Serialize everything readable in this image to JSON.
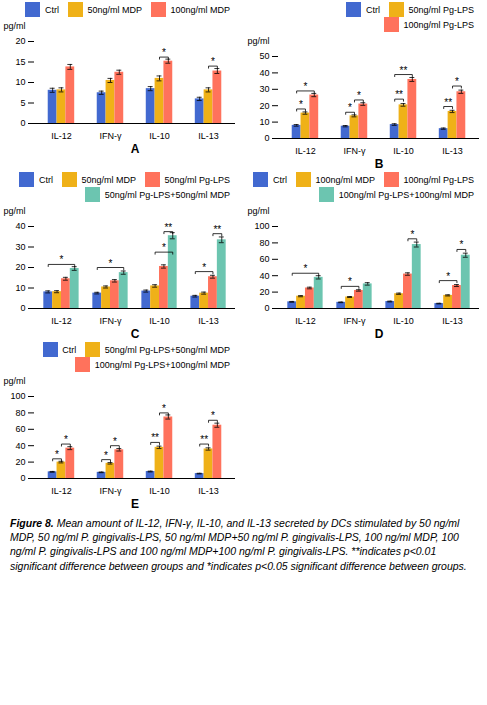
{
  "chart_data": [
    {
      "type": "bar",
      "title": "A",
      "ylabel": "pg/ml",
      "categories": [
        "IL-12",
        "IFN-γ",
        "IL-10",
        "IL-13"
      ],
      "series": [
        {
          "name": "Ctrl",
          "values": [
            8.1,
            7.5,
            8.5,
            6.0
          ],
          "errors": [
            0.5,
            0.4,
            0.5,
            0.4
          ]
        },
        {
          "name": "50ng/ml MDP",
          "values": [
            8.2,
            10.5,
            11.0,
            8.2
          ],
          "errors": [
            0.5,
            0.5,
            0.6,
            0.5
          ]
        },
        {
          "name": "100ng/ml MDP",
          "values": [
            13.8,
            12.5,
            15.2,
            12.8
          ],
          "errors": [
            0.6,
            0.5,
            0.5,
            0.6
          ]
        }
      ],
      "ylim": [
        0,
        20
      ],
      "yticks": [
        0,
        5,
        10,
        15,
        20
      ],
      "legend": "upper right",
      "grid": false,
      "annotations": [
        {
          "category": "IL-10",
          "from": "50ng/ml MDP",
          "to": "100ng/ml MDP",
          "y": 16.2,
          "text": "*"
        },
        {
          "category": "IL-13",
          "from": "50ng/ml MDP",
          "to": "100ng/ml MDP",
          "y": 14.0,
          "text": "*"
        }
      ]
    },
    {
      "type": "bar",
      "title": "B",
      "ylabel": "pg/ml",
      "categories": [
        "IL-12",
        "IFN-γ",
        "IL-10",
        "IL-13"
      ],
      "series": [
        {
          "name": "Ctrl",
          "values": [
            8.0,
            7.5,
            8.5,
            6.0
          ],
          "errors": [
            0.5,
            0.4,
            0.5,
            0.4
          ]
        },
        {
          "name": "50ng/ml Pg-LPS",
          "values": [
            15.5,
            13.8,
            20.5,
            16.5
          ],
          "errors": [
            0.7,
            0.6,
            0.8,
            0.7
          ]
        },
        {
          "name": "100ng/ml Pg-LPS",
          "values": [
            26.5,
            21.0,
            36.0,
            28.5
          ],
          "errors": [
            1.0,
            0.8,
            1.2,
            1.0
          ]
        }
      ],
      "ylim": [
        0,
        50
      ],
      "yticks": [
        0,
        10,
        20,
        30,
        40,
        50
      ],
      "legend": "upper right",
      "grid": false,
      "annotations": [
        {
          "category": "IL-12",
          "from": "Ctrl",
          "to": "50ng/ml Pg-LPS",
          "y": 18.0,
          "text": "*"
        },
        {
          "category": "IL-12",
          "from": "Ctrl",
          "to": "100ng/ml Pg-LPS",
          "y": 29.0,
          "text": "*"
        },
        {
          "category": "IFN-γ",
          "from": "Ctrl",
          "to": "50ng/ml Pg-LPS",
          "y": 16.0,
          "text": "*"
        },
        {
          "category": "IFN-γ",
          "from": "50ng/ml Pg-LPS",
          "to": "100ng/ml Pg-LPS",
          "y": 23.5,
          "text": "*"
        },
        {
          "category": "IL-10",
          "from": "Ctrl",
          "to": "50ng/ml Pg-LPS",
          "y": 24.0,
          "text": "**"
        },
        {
          "category": "IL-10",
          "from": "Ctrl",
          "to": "100ng/ml Pg-LPS",
          "y": 39.0,
          "text": "**"
        },
        {
          "category": "IL-13",
          "from": "Ctrl",
          "to": "50ng/ml Pg-LPS",
          "y": 19.5,
          "text": "**"
        },
        {
          "category": "IL-13",
          "from": "50ng/ml Pg-LPS",
          "to": "100ng/ml Pg-LPS",
          "y": 32.0,
          "text": "*"
        }
      ]
    },
    {
      "type": "bar",
      "title": "C",
      "ylabel": "pg/ml",
      "categories": [
        "IL-12",
        "IFN-γ",
        "IL-10",
        "IL-13"
      ],
      "series": [
        {
          "name": "Ctrl",
          "values": [
            8.1,
            7.5,
            8.5,
            6.0
          ],
          "errors": [
            0.5,
            0.4,
            0.5,
            0.4
          ]
        },
        {
          "name": "50ng/ml MDP",
          "values": [
            8.2,
            10.5,
            11.0,
            7.5
          ],
          "errors": [
            0.5,
            0.5,
            0.6,
            0.5
          ]
        },
        {
          "name": "50ng/ml Pg-LPS",
          "values": [
            14.5,
            13.5,
            20.5,
            15.5
          ],
          "errors": [
            0.7,
            0.6,
            0.8,
            0.7
          ]
        },
        {
          "name": "50ng/ml Pg-LPS+50ng/ml MDP",
          "values": [
            19.5,
            17.5,
            35.5,
            33.5
          ],
          "errors": [
            0.9,
            0.8,
            1.5,
            1.4
          ]
        }
      ],
      "ylim": [
        0,
        40
      ],
      "yticks": [
        0,
        10,
        20,
        30,
        40
      ],
      "legend": "upper right",
      "grid": false,
      "annotations": [
        {
          "category": "IL-12",
          "from": "Ctrl",
          "to": "50ng/ml Pg-LPS+50ng/ml MDP",
          "y": 21.5,
          "text": "*"
        },
        {
          "category": "IFN-γ",
          "from": "Ctrl",
          "to": "50ng/ml Pg-LPS+50ng/ml MDP",
          "y": 20.0,
          "text": "*"
        },
        {
          "category": "IL-10",
          "from": "50ng/ml MDP",
          "to": "50ng/ml Pg-LPS+50ng/ml MDP",
          "y": 27.5,
          "text": "*"
        },
        {
          "category": "IL-10",
          "from": "50ng/ml Pg-LPS",
          "to": "50ng/ml Pg-LPS+50ng/ml MDP",
          "y": 37.5,
          "text": "**"
        },
        {
          "category": "IL-13",
          "from": "Ctrl",
          "to": "50ng/ml Pg-LPS",
          "y": 18.0,
          "text": "*"
        },
        {
          "category": "IL-13",
          "from": "50ng/ml Pg-LPS",
          "to": "50ng/ml Pg-LPS+50ng/ml MDP",
          "y": 36.5,
          "text": "**"
        }
      ]
    },
    {
      "type": "bar",
      "title": "D",
      "ylabel": "pg/ml",
      "categories": [
        "IL-12",
        "IFN-γ",
        "IL-10",
        "IL-13"
      ],
      "series": [
        {
          "name": "Ctrl",
          "values": [
            8.1,
            7.5,
            8.5,
            6.0
          ],
          "errors": [
            0.5,
            0.4,
            0.5,
            0.4
          ]
        },
        {
          "name": "100ng/ml MDP",
          "values": [
            15.0,
            14.0,
            18.0,
            16.0
          ],
          "errors": [
            0.7,
            0.6,
            0.8,
            0.7
          ]
        },
        {
          "name": "100ng/ml Pg-LPS",
          "values": [
            25.0,
            22.0,
            42.0,
            28.0
          ],
          "errors": [
            1.0,
            0.9,
            1.5,
            1.2
          ]
        },
        {
          "name": "100ng/ml Pg-LPS+100ng/ml MDP",
          "values": [
            38.0,
            30.0,
            78.0,
            65.0
          ],
          "errors": [
            2.0,
            1.5,
            3.0,
            2.5
          ]
        }
      ],
      "ylim": [
        0,
        100
      ],
      "yticks": [
        0,
        20,
        40,
        60,
        80,
        100
      ],
      "legend": "upper right",
      "grid": false,
      "annotations": [
        {
          "category": "IL-12",
          "from": "Ctrl",
          "to": "100ng/ml Pg-LPS+100ng/ml MDP",
          "y": 43.0,
          "text": "*"
        },
        {
          "category": "IFN-γ",
          "from": "Ctrl",
          "to": "100ng/ml Pg-LPS",
          "y": 27.0,
          "text": "*"
        },
        {
          "category": "IL-10",
          "from": "100ng/ml Pg-LPS",
          "to": "100ng/ml Pg-LPS+100ng/ml MDP",
          "y": 85.0,
          "text": "*"
        },
        {
          "category": "IL-13",
          "from": "Ctrl",
          "to": "100ng/ml Pg-LPS",
          "y": 34.0,
          "text": "*"
        },
        {
          "category": "IL-13",
          "from": "100ng/ml Pg-LPS",
          "to": "100ng/ml Pg-LPS+100ng/ml MDP",
          "y": 72.0,
          "text": "*"
        }
      ]
    },
    {
      "type": "bar",
      "title": "E",
      "ylabel": "pg/ml",
      "categories": [
        "IL-12",
        "IFN-γ",
        "IL-10",
        "IL-13"
      ],
      "series": [
        {
          "name": "Ctrl",
          "values": [
            8.1,
            7.5,
            8.5,
            6.0
          ],
          "errors": [
            0.5,
            0.4,
            0.5,
            0.4
          ]
        },
        {
          "name": "50ng/ml Pg-LPS+50ng/ml MDP",
          "values": [
            20.0,
            18.5,
            38.0,
            36.0
          ],
          "errors": [
            1.0,
            0.9,
            1.5,
            1.4
          ]
        },
        {
          "name": "100ng/ml Pg-LPS+100ng/ml MDP",
          "values": [
            37.0,
            35.0,
            75.0,
            65.0
          ],
          "errors": [
            1.8,
            1.5,
            2.5,
            2.5
          ]
        }
      ],
      "ylim": [
        0,
        100
      ],
      "yticks": [
        0,
        20,
        40,
        60,
        80,
        100
      ],
      "legend": "upper right",
      "grid": false,
      "annotations": [
        {
          "category": "IL-12",
          "from": "Ctrl",
          "to": "50ng/ml Pg-LPS+50ng/ml MDP",
          "y": 24.0,
          "text": "*"
        },
        {
          "category": "IL-12",
          "from": "50ng/ml Pg-LPS+50ng/ml MDP",
          "to": "100ng/ml Pg-LPS+100ng/ml MDP",
          "y": 42.0,
          "text": "*"
        },
        {
          "category": "IFN-γ",
          "from": "Ctrl",
          "to": "50ng/ml Pg-LPS+50ng/ml MDP",
          "y": 23.0,
          "text": "*"
        },
        {
          "category": "IFN-γ",
          "from": "50ng/ml Pg-LPS+50ng/ml MDP",
          "to": "100ng/ml Pg-LPS+100ng/ml MDP",
          "y": 40.0,
          "text": "*"
        },
        {
          "category": "IL-10",
          "from": "Ctrl",
          "to": "50ng/ml Pg-LPS+50ng/ml MDP",
          "y": 44.0,
          "text": "**"
        },
        {
          "category": "IL-10",
          "from": "50ng/ml Pg-LPS+50ng/ml MDP",
          "to": "100ng/ml Pg-LPS+100ng/ml MDP",
          "y": 80.0,
          "text": "*"
        },
        {
          "category": "IL-13",
          "from": "Ctrl",
          "to": "50ng/ml Pg-LPS+50ng/ml MDP",
          "y": 42.0,
          "text": "**"
        },
        {
          "category": "IL-13",
          "from": "50ng/ml Pg-LPS+50ng/ml MDP",
          "to": "100ng/ml Pg-LPS+100ng/ml MDP",
          "y": 71.0,
          "text": "*"
        }
      ]
    }
  ],
  "caption_bold": "Figure 8.",
  "caption": "Mean amount of IL-12, IFN-γ, IL-10, and IL-13 secreted by DCs stimulated by 50 ng/ml MDP, 50 ng/ml P. gingivalis-LPS, 50 ng/ml MDP+50 ng/ml P. gingivalis-LPS, 100 ng/ml MDP, 100 ng/ml P. gingivalis-LPS and 100 ng/ml MDP+100 ng/ml P. gingivalis-LPS. **indicates p<0.01 significant difference between groups and *indicates p<0.05 significant difference between groups."
}
